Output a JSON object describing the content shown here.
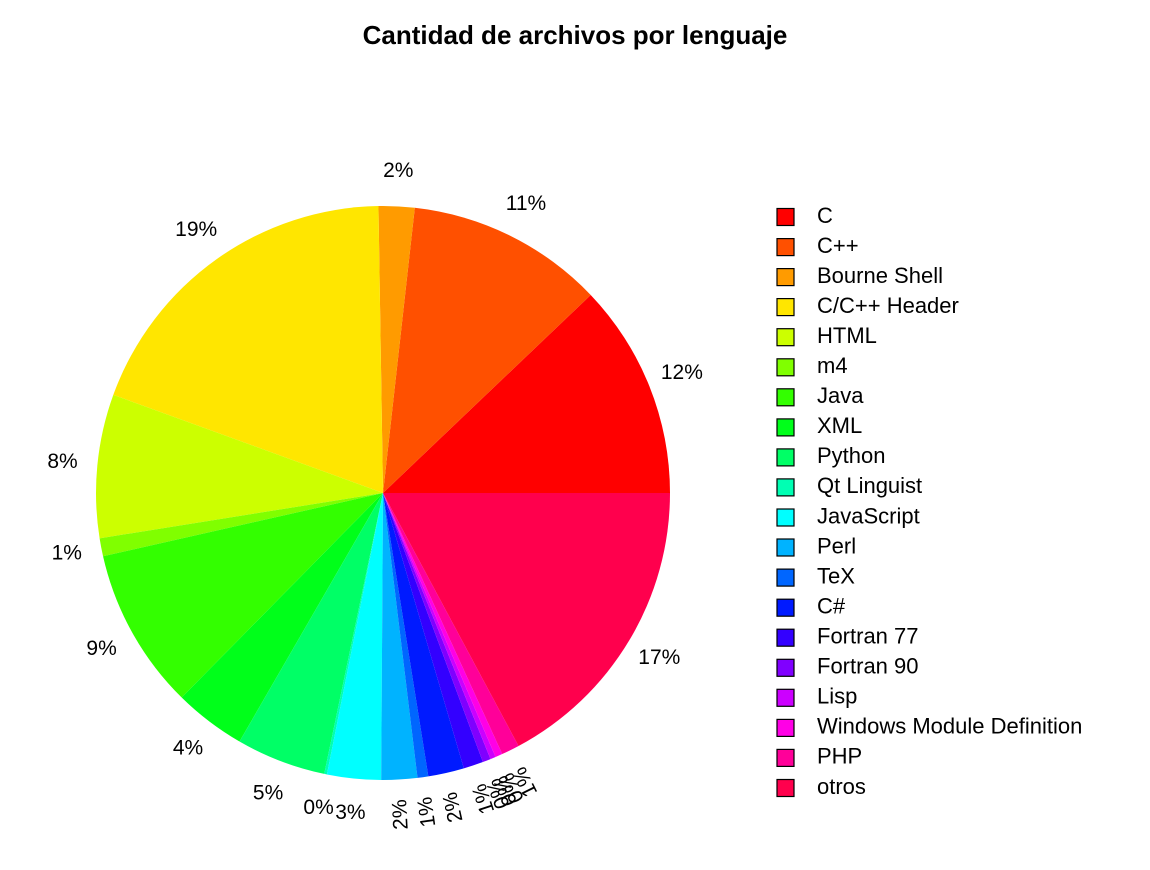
{
  "chart_data": {
    "type": "pie",
    "title": "Cantidad de archivos por lenguaje",
    "legend_position": "right",
    "slices": [
      {
        "name": "C",
        "value": 12,
        "label": "12%",
        "color": "#FF0000"
      },
      {
        "name": "C++",
        "value": 11,
        "label": "11%",
        "color": "#FF5000"
      },
      {
        "name": "Bourne Shell",
        "value": 2,
        "label": "2%",
        "color": "#FF9B00"
      },
      {
        "name": "C/C++ Header",
        "value": 19,
        "label": "19%",
        "color": "#FFE600"
      },
      {
        "name": "HTML",
        "value": 8,
        "label": "8%",
        "color": "#CCFF00"
      },
      {
        "name": "m4",
        "value": 1,
        "label": "1%",
        "color": "#80FF00"
      },
      {
        "name": "Java",
        "value": 9,
        "label": "9%",
        "color": "#33FF00"
      },
      {
        "name": "XML",
        "value": 4,
        "label": "4%",
        "color": "#00FF1A"
      },
      {
        "name": "Python",
        "value": 5,
        "label": "5%",
        "color": "#00FF66"
      },
      {
        "name": "Qt Linguist",
        "value": 0.15,
        "label": "0%",
        "color": "#00FFB3"
      },
      {
        "name": "JavaScript",
        "value": 3,
        "label": "3%",
        "color": "#00FFFF"
      },
      {
        "name": "Perl",
        "value": 2,
        "label": "2%",
        "color": "#00B3FF"
      },
      {
        "name": "TeX",
        "value": 0.6,
        "label": "1%",
        "color": "#0066FF"
      },
      {
        "name": "C#",
        "value": 2,
        "label": "2%",
        "color": "#001AFF"
      },
      {
        "name": "Fortran 77",
        "value": 1.1,
        "label": "1%",
        "color": "#3300FF"
      },
      {
        "name": "Fortran 90",
        "value": 0.45,
        "label": "0%",
        "color": "#8000FF"
      },
      {
        "name": "Lisp",
        "value": 0.3,
        "label": "0%",
        "color": "#CC00FF"
      },
      {
        "name": "Windows Module Definition",
        "value": 0.4,
        "label": "0%",
        "color": "#FF00E6"
      },
      {
        "name": "PHP",
        "value": 1,
        "label": "1%",
        "color": "#FF0099"
      },
      {
        "name": "otros",
        "value": 17,
        "label": "17%",
        "color": "#FF004D"
      }
    ]
  }
}
